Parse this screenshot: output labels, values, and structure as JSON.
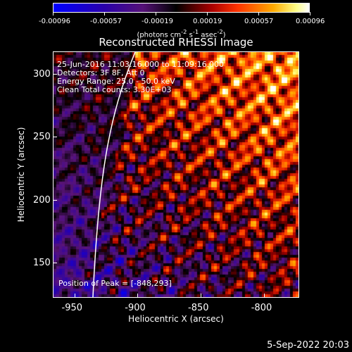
{
  "title": "Reconstructed RHESSI Image",
  "annotations": {
    "lines": [
      "25-Jun-2016 11:03:16.000 to 11:09:16.000",
      "Detectors: 3F 8F, Att 0",
      "Energy Range: 25.0 - 50.0 keV",
      "Clean    Total counts: 3.30E+03"
    ],
    "peak": "Position of Peak = [-848,293]"
  },
  "axes": {
    "xlabel": "Heliocentric X (arcsec)",
    "ylabel": "Heliocentric Y (arcsec)",
    "xlim": [
      -967,
      -772
    ],
    "ylim": [
      122,
      318
    ],
    "xticks": [
      -950,
      -900,
      -850,
      -800
    ],
    "yticks": [
      150,
      200,
      250,
      300
    ]
  },
  "colorbar": {
    "ticks": [
      "-0.00096",
      "-0.00057",
      "-0.00019",
      "0.00019",
      "0.00057",
      "0.00096"
    ],
    "units": "(photons cm-2 s-1 asec-2)",
    "range": [
      -0.00096,
      0.00096
    ]
  },
  "timestamp": "5-Sep-2022 20:03",
  "colors": {
    "background": "#000000",
    "foreground": "#ffffff"
  }
}
